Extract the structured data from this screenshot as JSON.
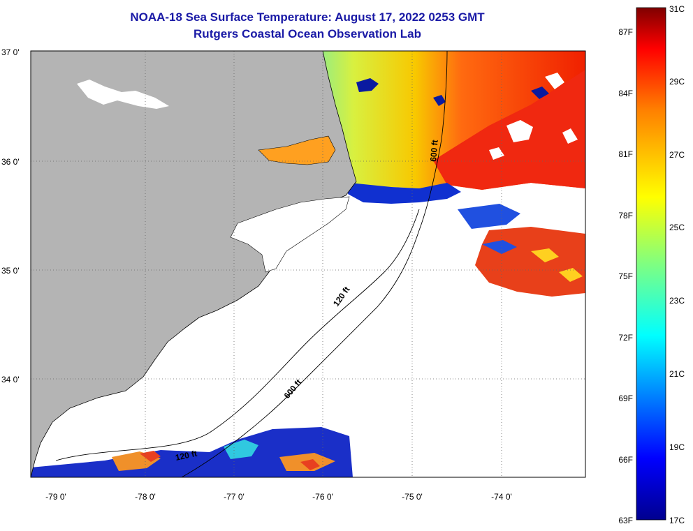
{
  "header": {
    "title": "NOAA-18 Sea Surface Temperature:  August 17, 2022 0253 GMT",
    "subtitle": "Rutgers Coastal Ocean Observation Lab"
  },
  "map": {
    "lon_labels": [
      "-79 0'",
      "-78 0'",
      "-77 0'",
      "-76 0'",
      "-75 0'",
      "-74 0'"
    ],
    "lat_labels": [
      "37 0'",
      "36 0'",
      "35 0'",
      "34 0'"
    ],
    "contours": {
      "shelf_120": "120 ft",
      "shelf_600": "600 ft",
      "lower_120": "120 ft",
      "upper_600": "600 ft"
    },
    "land_color": "#b4b4b4"
  },
  "colorbar": {
    "fahrenheit": [
      "87F",
      "84F",
      "81F",
      "78F",
      "75F",
      "72F",
      "69F",
      "66F",
      "63F"
    ],
    "celsius": [
      "31C",
      "29C",
      "27C",
      "25C",
      "23C",
      "21C",
      "19C",
      "17C"
    ],
    "colors": [
      "#7f0000",
      "#ff0000",
      "#ff8000",
      "#ffff00",
      "#80ff80",
      "#00ffff",
      "#0080ff",
      "#0000ff",
      "#00008f"
    ]
  }
}
